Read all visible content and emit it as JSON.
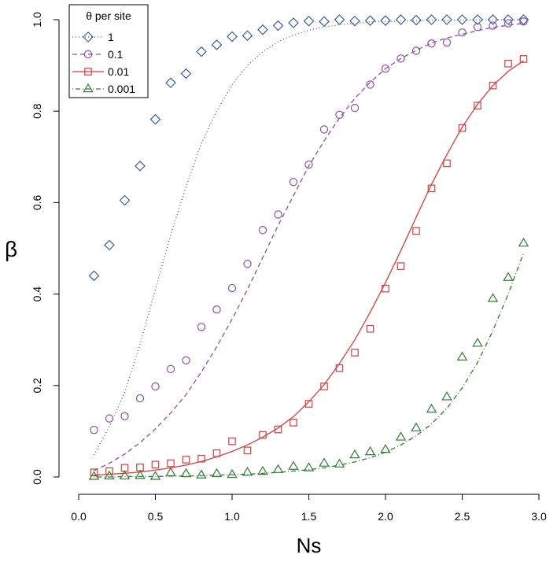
{
  "chart_data": {
    "type": "scatter",
    "xlabel": "Ns",
    "ylabel": "β",
    "xlim": [
      0,
      3
    ],
    "ylim": [
      0,
      1
    ],
    "x_ticks": [
      "0.0",
      "0.5",
      "1.0",
      "1.5",
      "2.0",
      "2.5",
      "3.0"
    ],
    "y_ticks": [
      "0.0",
      "0.2",
      "0.4",
      "0.6",
      "0.8",
      "1.0"
    ],
    "x": [
      0.1,
      0.2,
      0.3,
      0.4,
      0.5,
      0.6,
      0.7,
      0.8,
      0.9,
      1.0,
      1.1,
      1.2,
      1.3,
      1.4,
      1.5,
      1.6,
      1.7,
      1.8,
      1.9,
      2.0,
      2.1,
      2.2,
      2.3,
      2.4,
      2.5,
      2.6,
      2.7,
      2.8,
      2.9
    ],
    "legend": {
      "title": "θ per site",
      "position": "top-left"
    },
    "grid": false,
    "series": [
      {
        "name": "1",
        "marker": "diamond",
        "line": "dotted",
        "color": "#3a5ba8",
        "points": [
          0.44,
          0.507,
          0.605,
          0.68,
          0.782,
          0.862,
          0.882,
          0.93,
          0.945,
          0.963,
          0.965,
          0.978,
          0.987,
          0.993,
          0.997,
          0.996,
          1.0,
          0.997,
          0.998,
          0.998,
          1.0,
          0.999,
          1.0,
          1.0,
          1.0,
          1.0,
          1.0,
          1.0,
          1.0
        ],
        "curve": [
          0.048,
          0.11,
          0.185,
          0.29,
          0.41,
          0.53,
          0.635,
          0.73,
          0.8,
          0.858,
          0.9,
          0.93,
          0.952,
          0.966,
          0.977,
          0.984,
          0.989,
          0.992,
          0.995,
          0.996,
          0.997,
          0.998,
          0.999,
          0.999,
          0.999,
          1.0,
          1.0,
          1.0,
          1.0
        ]
      },
      {
        "name": "0.1",
        "marker": "circle",
        "line": "dashed",
        "color": "#8e4fb0",
        "points": [
          0.103,
          0.128,
          0.133,
          0.172,
          0.198,
          0.236,
          0.255,
          0.328,
          0.366,
          0.413,
          0.466,
          0.54,
          0.574,
          0.645,
          0.683,
          0.76,
          0.792,
          0.807,
          0.858,
          0.893,
          0.915,
          0.932,
          0.948,
          0.95,
          0.972,
          0.984,
          0.987,
          0.992,
          0.996
        ],
        "curve": [
          0.014,
          0.03,
          0.05,
          0.075,
          0.105,
          0.14,
          0.18,
          0.23,
          0.285,
          0.345,
          0.41,
          0.48,
          0.55,
          0.615,
          0.68,
          0.735,
          0.785,
          0.828,
          0.863,
          0.893,
          0.915,
          0.933,
          0.949,
          0.96,
          0.968,
          0.976,
          0.983,
          0.988,
          0.992
        ]
      },
      {
        "name": "0.01",
        "marker": "square",
        "line": "solid",
        "color": "#e03a3a",
        "points": [
          0.01,
          0.013,
          0.02,
          0.021,
          0.027,
          0.03,
          0.038,
          0.04,
          0.052,
          0.078,
          0.058,
          0.092,
          0.104,
          0.119,
          0.16,
          0.198,
          0.238,
          0.272,
          0.324,
          0.412,
          0.461,
          0.538,
          0.631,
          0.686,
          0.763,
          0.812,
          0.856,
          0.904,
          0.914
        ],
        "curve": [
          0.004,
          0.006,
          0.008,
          0.011,
          0.015,
          0.02,
          0.026,
          0.034,
          0.044,
          0.056,
          0.07,
          0.087,
          0.107,
          0.132,
          0.164,
          0.202,
          0.248,
          0.3,
          0.36,
          0.425,
          0.495,
          0.568,
          0.64,
          0.705,
          0.765,
          0.815,
          0.856,
          0.887,
          0.91
        ]
      },
      {
        "name": "0.001",
        "marker": "triangle",
        "line": "dotdash",
        "color": "#2e7d32",
        "points": [
          0.001,
          0.002,
          0.002,
          0.003,
          0.001,
          0.009,
          0.007,
          0.004,
          0.007,
          0.005,
          0.01,
          0.012,
          0.016,
          0.023,
          0.02,
          0.03,
          0.028,
          0.048,
          0.055,
          0.06,
          0.087,
          0.107,
          0.148,
          0.175,
          0.262,
          0.292,
          0.39,
          0.436,
          0.511
        ],
        "curve": [
          0.0,
          0.0,
          0.001,
          0.001,
          0.001,
          0.002,
          0.002,
          0.003,
          0.004,
          0.005,
          0.006,
          0.008,
          0.01,
          0.013,
          0.016,
          0.02,
          0.026,
          0.033,
          0.042,
          0.054,
          0.07,
          0.09,
          0.116,
          0.15,
          0.195,
          0.25,
          0.32,
          0.4,
          0.49
        ]
      }
    ]
  }
}
